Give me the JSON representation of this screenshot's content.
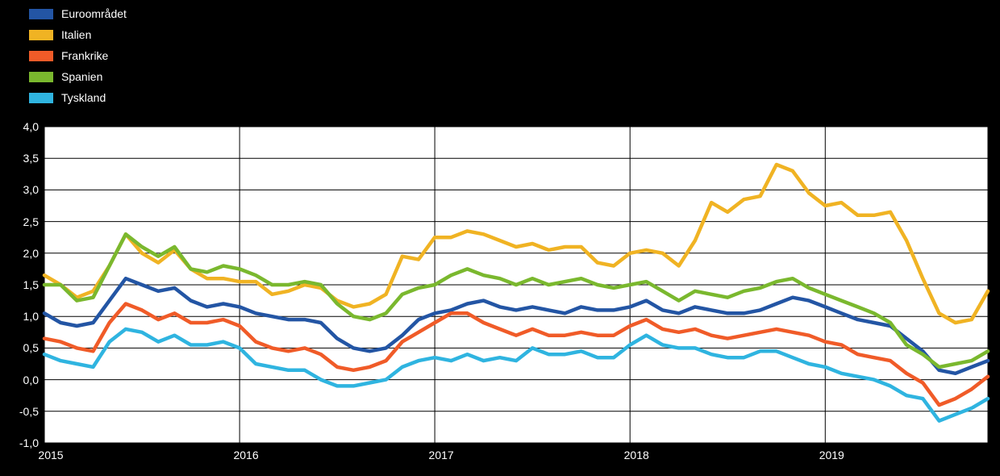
{
  "page": {
    "background": "#000000",
    "plot_background": "#FFFFFF",
    "grid_color": "#000000",
    "axis_text_color": "#FFFFFF"
  },
  "chart_data": {
    "type": "line",
    "title": "",
    "xlabel": "",
    "ylabel": "",
    "legend_position": "top-left",
    "grid": true,
    "ylim": [
      -1.0,
      4.0
    ],
    "y_ticks": [
      4.0,
      3.5,
      3.0,
      2.5,
      2.0,
      1.5,
      1.0,
      0.5,
      0.0,
      -0.5,
      -1.0
    ],
    "decimal_separator": ",",
    "x_tick_labels": [
      "2015",
      "2016",
      "2017",
      "2018",
      "2019"
    ],
    "x_tick_positions": [
      0,
      12,
      24,
      36,
      48
    ],
    "points_per_year": 12,
    "series": [
      {
        "name": "Euroområdet",
        "color": "#2355A4",
        "values": [
          1.05,
          0.9,
          0.85,
          0.9,
          1.25,
          1.6,
          1.5,
          1.4,
          1.45,
          1.25,
          1.15,
          1.2,
          1.15,
          1.05,
          1.0,
          0.95,
          0.95,
          0.9,
          0.65,
          0.5,
          0.45,
          0.5,
          0.7,
          0.95,
          1.05,
          1.1,
          1.2,
          1.25,
          1.15,
          1.1,
          1.15,
          1.1,
          1.05,
          1.15,
          1.1,
          1.1,
          1.15,
          1.25,
          1.1,
          1.05,
          1.15,
          1.1,
          1.05,
          1.05,
          1.1,
          1.2,
          1.3,
          1.25,
          1.15,
          1.05,
          0.95,
          0.9,
          0.85,
          0.65,
          0.45,
          0.15,
          0.1,
          0.2,
          0.3
        ]
      },
      {
        "name": "Italien",
        "color": "#F0B323",
        "values": [
          1.65,
          1.5,
          1.3,
          1.4,
          1.8,
          2.3,
          2.0,
          1.85,
          2.05,
          1.75,
          1.6,
          1.6,
          1.55,
          1.55,
          1.35,
          1.4,
          1.5,
          1.45,
          1.25,
          1.15,
          1.2,
          1.35,
          1.95,
          1.9,
          2.25,
          2.25,
          2.35,
          2.3,
          2.2,
          2.1,
          2.15,
          2.05,
          2.1,
          2.1,
          1.85,
          1.8,
          2.0,
          2.05,
          2.0,
          1.8,
          2.2,
          2.8,
          2.65,
          2.85,
          2.9,
          3.4,
          3.3,
          2.95,
          2.75,
          2.8,
          2.6,
          2.6,
          2.65,
          2.2,
          1.6,
          1.05,
          0.9,
          0.95,
          1.4
        ]
      },
      {
        "name": "Frankrike",
        "color": "#F05B28",
        "values": [
          0.65,
          0.6,
          0.5,
          0.45,
          0.9,
          1.2,
          1.1,
          0.95,
          1.05,
          0.9,
          0.9,
          0.95,
          0.85,
          0.6,
          0.5,
          0.45,
          0.5,
          0.4,
          0.2,
          0.15,
          0.2,
          0.3,
          0.6,
          0.75,
          0.9,
          1.05,
          1.05,
          0.9,
          0.8,
          0.7,
          0.8,
          0.7,
          0.7,
          0.75,
          0.7,
          0.7,
          0.85,
          0.95,
          0.8,
          0.75,
          0.8,
          0.7,
          0.65,
          0.7,
          0.75,
          0.8,
          0.75,
          0.7,
          0.6,
          0.55,
          0.4,
          0.35,
          0.3,
          0.1,
          -0.05,
          -0.4,
          -0.3,
          -0.15,
          0.05
        ]
      },
      {
        "name": "Spanien",
        "color": "#7AB82E",
        "values": [
          1.5,
          1.5,
          1.25,
          1.3,
          1.8,
          2.3,
          2.1,
          1.95,
          2.1,
          1.75,
          1.7,
          1.8,
          1.75,
          1.65,
          1.5,
          1.5,
          1.55,
          1.5,
          1.2,
          1.0,
          0.95,
          1.05,
          1.35,
          1.45,
          1.5,
          1.65,
          1.75,
          1.65,
          1.6,
          1.5,
          1.6,
          1.5,
          1.55,
          1.6,
          1.5,
          1.45,
          1.5,
          1.55,
          1.4,
          1.25,
          1.4,
          1.35,
          1.3,
          1.4,
          1.45,
          1.55,
          1.6,
          1.45,
          1.35,
          1.25,
          1.15,
          1.05,
          0.9,
          0.55,
          0.4,
          0.2,
          0.25,
          0.3,
          0.45
        ]
      },
      {
        "name": "Tyskland",
        "color": "#2FB4E0",
        "values": [
          0.4,
          0.3,
          0.25,
          0.2,
          0.6,
          0.8,
          0.75,
          0.6,
          0.7,
          0.55,
          0.55,
          0.6,
          0.5,
          0.25,
          0.2,
          0.15,
          0.15,
          0.0,
          -0.1,
          -0.1,
          -0.05,
          0.0,
          0.2,
          0.3,
          0.35,
          0.3,
          0.4,
          0.3,
          0.35,
          0.3,
          0.5,
          0.4,
          0.4,
          0.45,
          0.35,
          0.35,
          0.55,
          0.7,
          0.55,
          0.5,
          0.5,
          0.4,
          0.35,
          0.35,
          0.45,
          0.45,
          0.35,
          0.25,
          0.2,
          0.1,
          0.05,
          0.0,
          -0.1,
          -0.25,
          -0.3,
          -0.65,
          -0.55,
          -0.45,
          -0.3
        ]
      }
    ]
  }
}
